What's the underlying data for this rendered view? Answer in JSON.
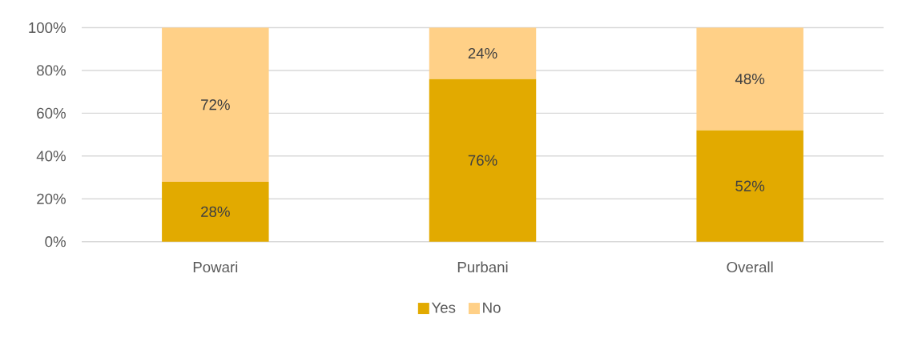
{
  "chart_data": {
    "type": "bar",
    "stacked": true,
    "categories": [
      "Powari",
      "Purbani",
      "Overall"
    ],
    "series": [
      {
        "name": "Yes",
        "color": "#e2aa00",
        "values": [
          28,
          76,
          52
        ],
        "value_labels": [
          "28%",
          "76%",
          "52%"
        ]
      },
      {
        "name": "No",
        "color": "#ffd087",
        "values": [
          72,
          24,
          48
        ],
        "value_labels": [
          "72%",
          "24%",
          "48%"
        ]
      }
    ],
    "ylim": [
      0,
      100
    ],
    "yticks": [
      {
        "value": 0,
        "label": "0%"
      },
      {
        "value": 20,
        "label": "20%"
      },
      {
        "value": 40,
        "label": "40%"
      },
      {
        "value": 60,
        "label": "60%"
      },
      {
        "value": 80,
        "label": "80%"
      },
      {
        "value": 100,
        "label": "100%"
      }
    ],
    "grid": "y",
    "legend": "bottom"
  }
}
